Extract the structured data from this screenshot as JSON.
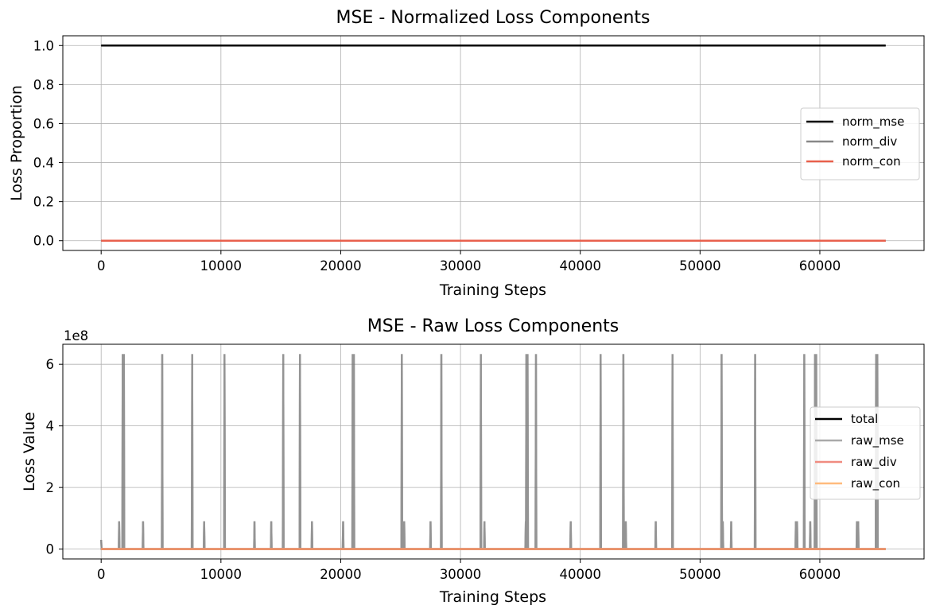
{
  "chart_data": [
    {
      "type": "line",
      "title": "MSE - Normalized Loss Components",
      "xlabel": "Training Steps",
      "ylabel": "Loss Proportion",
      "xlim": [
        -3200,
        68700
      ],
      "ylim": [
        -0.05,
        1.05
      ],
      "xticks": [
        0,
        10000,
        20000,
        30000,
        40000,
        50000,
        60000
      ],
      "xtick_labels": [
        "0",
        "10000",
        "20000",
        "30000",
        "40000",
        "50000",
        "60000"
      ],
      "yticks": [
        0.0,
        0.2,
        0.4,
        0.6,
        0.8,
        1.0
      ],
      "ytick_labels": [
        "0.0",
        "0.2",
        "0.4",
        "0.6",
        "0.8",
        "1.0"
      ],
      "grid": true,
      "legend_position": "center-right",
      "series": [
        {
          "name": "norm_mse",
          "color": "#000000",
          "x": [
            0,
            65500
          ],
          "values": [
            1.0,
            1.0
          ]
        },
        {
          "name": "norm_div",
          "color": "#888888",
          "x": [
            0,
            65500
          ],
          "values": [
            0.0,
            0.0
          ]
        },
        {
          "name": "norm_con",
          "color": "#e8604c",
          "x": [
            0,
            65500
          ],
          "values": [
            0.0,
            0.0
          ]
        }
      ]
    },
    {
      "type": "line",
      "title": "MSE - Raw Loss Components",
      "xlabel": "Training Steps",
      "ylabel": "Loss Value",
      "y_offset_label": "1e8",
      "xlim": [
        -3200,
        68700
      ],
      "ylim": [
        -32000000.0,
        665000000.0
      ],
      "xticks": [
        0,
        10000,
        20000,
        30000,
        40000,
        50000,
        60000
      ],
      "xtick_labels": [
        "0",
        "10000",
        "20000",
        "30000",
        "40000",
        "50000",
        "60000"
      ],
      "yticks": [
        0,
        200000000,
        400000000,
        600000000
      ],
      "ytick_labels": [
        "0",
        "2",
        "4",
        "6"
      ],
      "grid": true,
      "legend_position": "center-right",
      "x_range": [
        0,
        65500
      ],
      "baseline": 0,
      "spikes_high": {
        "value": 633000000,
        "steps": [
          1800,
          1900,
          5100,
          7600,
          10300,
          15200,
          16600,
          21000,
          21100,
          25100,
          28400,
          31700,
          35500,
          35600,
          36300,
          41700,
          43600,
          47700,
          51800,
          54600,
          58700,
          59600,
          59700,
          64700,
          64800
        ]
      },
      "spikes_low": {
        "value": 90000000,
        "steps": [
          1500,
          3500,
          8600,
          12800,
          14200,
          17600,
          20200,
          25300,
          27500,
          32000,
          35450,
          39200,
          43800,
          46300,
          51900,
          52600,
          58000,
          58100,
          59200,
          63100,
          63200
        ]
      },
      "start_value": 30000000,
      "series": [
        {
          "name": "total",
          "color": "#000000"
        },
        {
          "name": "raw_mse",
          "color": "#aaaaaa"
        },
        {
          "name": "raw_div",
          "color": "#f08c80"
        },
        {
          "name": "raw_con",
          "color": "#ffbb7d"
        }
      ]
    }
  ]
}
